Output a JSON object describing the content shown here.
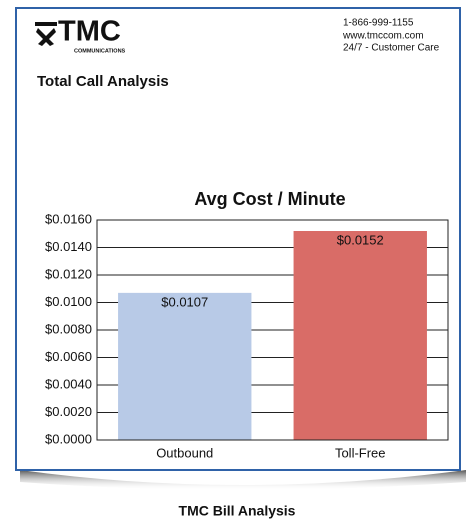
{
  "header": {
    "logo": "TMC",
    "logo_sub": "COMMUNICATIONS",
    "contact": [
      "1-866-999-1155",
      "www.tmccom.com",
      "24/7 - Customer Care"
    ],
    "title": "Total Call Analysis"
  },
  "chart_data": {
    "type": "bar",
    "title": "Avg Cost / Minute",
    "categories": [
      "Outbound",
      "Toll-Free"
    ],
    "values": [
      0.0107,
      0.0152
    ],
    "value_labels": [
      "$0.0107",
      "$0.0152"
    ],
    "colors": [
      "#b8cae7",
      "#d96c67"
    ],
    "ylim": [
      0,
      0.016
    ],
    "yticks": [
      {
        "value": 0,
        "label": "$0.0000"
      },
      {
        "value": 0.002,
        "label": "$0.0020"
      },
      {
        "value": 0.004,
        "label": "$0.0040"
      },
      {
        "value": 0.006,
        "label": "$0.0060"
      },
      {
        "value": 0.008,
        "label": "$0.0080"
      },
      {
        "value": 0.01,
        "label": "$0.0100"
      },
      {
        "value": 0.012,
        "label": "$0.0120"
      },
      {
        "value": 0.014,
        "label": "$0.0140"
      },
      {
        "value": 0.016,
        "label": "$0.0160"
      }
    ],
    "grid": true
  },
  "caption": "TMC Bill Analysis"
}
